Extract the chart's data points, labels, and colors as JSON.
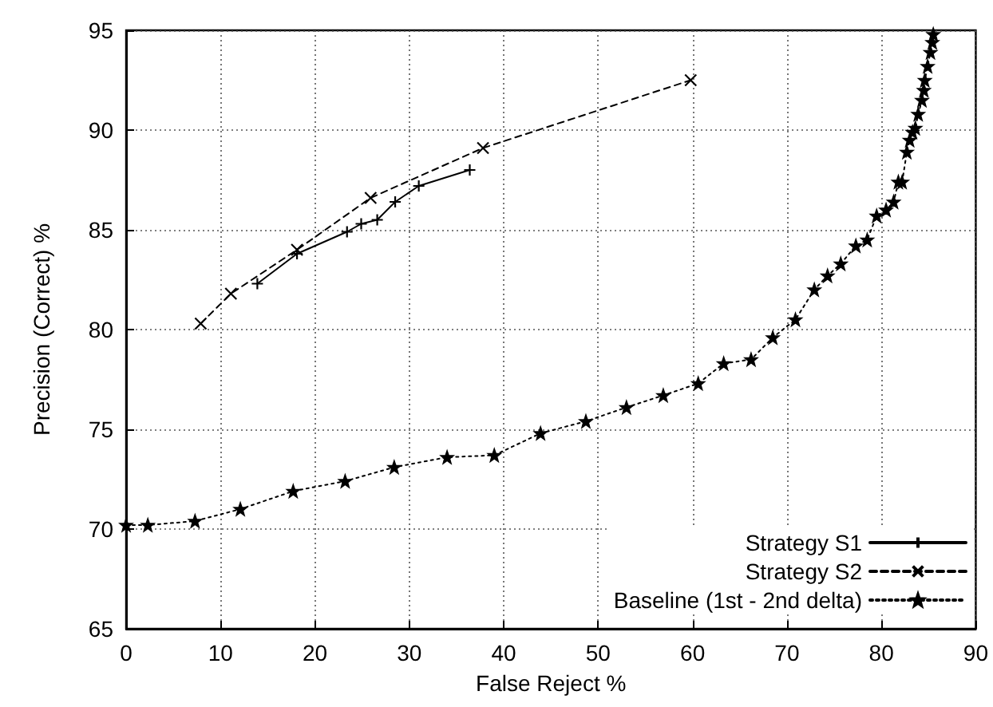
{
  "chart_data": {
    "type": "line",
    "xlabel": "False Reject %",
    "ylabel": "Precision (Correct) %",
    "xlim": [
      0,
      90
    ],
    "xticks": [
      0,
      10,
      20,
      30,
      40,
      50,
      60,
      70,
      80,
      90
    ],
    "ylim": [
      65,
      95
    ],
    "yticks": [
      65,
      70,
      75,
      80,
      85,
      90,
      95
    ],
    "grid": true,
    "legend": "bottom right",
    "series": [
      {
        "name": "Strategy S1",
        "color": "#000000",
        "marker": "cross",
        "line_style": "solid",
        "x": [
          13.9,
          18.1,
          23.4,
          24.9,
          26.6,
          28.5,
          31.0,
          36.4
        ],
        "values": [
          82.3,
          83.8,
          84.9,
          85.3,
          85.5,
          86.4,
          87.2,
          88.0
        ]
      },
      {
        "name": "Strategy S2",
        "color": "#000000",
        "marker": "x",
        "line_style": "dashed",
        "x": [
          7.9,
          11.1,
          18.1,
          25.9,
          37.8,
          59.8
        ],
        "values": [
          80.3,
          81.8,
          84.0,
          86.6,
          89.1,
          92.5
        ]
      },
      {
        "name": "Baseline (1st - 2nd delta)",
        "color": "#000000",
        "marker": "star",
        "line_style": "dotted",
        "x": [
          0,
          2.3,
          7.3,
          12.1,
          17.7,
          23.2,
          28.4,
          34.0,
          39.0,
          43.9,
          48.7,
          53.0,
          56.9,
          60.6,
          63.3,
          66.2,
          68.5,
          70.9,
          72.9,
          74.3,
          75.7,
          77.3,
          78.5,
          79.5,
          80.5,
          81.3,
          81.8,
          82.2,
          82.7,
          83.0,
          83.3,
          83.6,
          83.9,
          84.3,
          84.5,
          84.6,
          84.9,
          85.2,
          85.4,
          85.5
        ],
        "values": [
          70.2,
          70.2,
          70.4,
          71.0,
          71.9,
          72.4,
          73.1,
          73.6,
          73.7,
          74.8,
          75.4,
          76.1,
          76.7,
          77.3,
          78.3,
          78.5,
          79.6,
          80.5,
          82.0,
          82.7,
          83.3,
          84.2,
          84.5,
          85.7,
          86.0,
          86.4,
          87.4,
          87.4,
          88.9,
          89.5,
          89.9,
          90.1,
          90.8,
          91.5,
          92.0,
          92.5,
          93.2,
          93.9,
          94.4,
          94.8
        ]
      }
    ]
  }
}
